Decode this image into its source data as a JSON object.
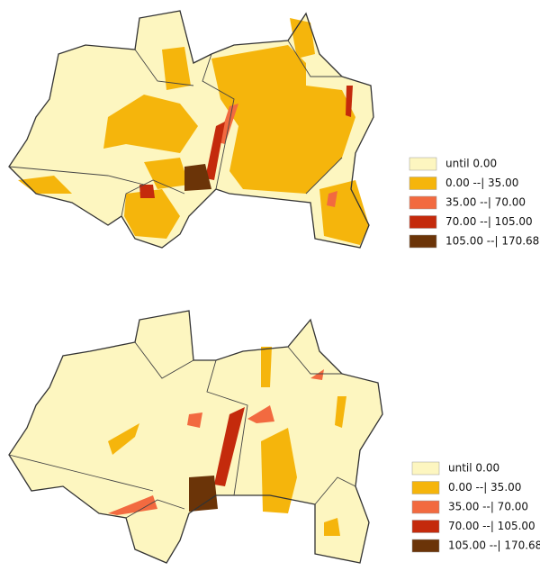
{
  "maps": [
    {
      "legend": [
        {
          "label": "until 0.00",
          "color": "#fdf6c0"
        },
        {
          "label": "0.00 --| 35.00",
          "color": "#f5b50c"
        },
        {
          "label": "35.00 --| 70.00",
          "color": "#f26a40"
        },
        {
          "label": "70.00 --| 105.00",
          "color": "#c42a0c"
        },
        {
          "label": "105.00 --| 170.68",
          "color": "#6b3408"
        }
      ]
    },
    {
      "legend": [
        {
          "label": "until 0.00",
          "color": "#fdf6c0"
        },
        {
          "label": "0.00 --| 35.00",
          "color": "#f5b50c"
        },
        {
          "label": "35.00 --| 70.00",
          "color": "#f26a40"
        },
        {
          "label": "70.00 --| 105.00",
          "color": "#c42a0c"
        },
        {
          "label": "105.00 --| 170.68",
          "color": "#6b3408"
        }
      ]
    }
  ]
}
